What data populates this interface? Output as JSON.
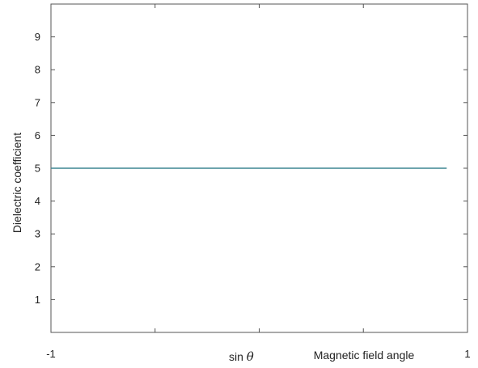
{
  "chart_data": {
    "type": "line",
    "title": "",
    "xlabel": "Magnetic field angle",
    "ylabel": "Dielectric coefficient",
    "x_annotation": {
      "prefix": "sin ",
      "symbol": "θ"
    },
    "xlim": [
      -1,
      1
    ],
    "ylim": [
      0,
      10
    ],
    "x_tick_labels": [
      {
        "value": -1,
        "label": "-1"
      },
      {
        "value": 1,
        "label": "1"
      }
    ],
    "x_minor_ticks": [
      -0.5,
      0,
      0.5
    ],
    "y_ticks": [
      1,
      2,
      3,
      4,
      5,
      6,
      7,
      8,
      9
    ],
    "grid": false,
    "series": [
      {
        "color": "#3d8592",
        "x": [
          -1,
          0.9
        ],
        "y": [
          5,
          5
        ]
      }
    ]
  }
}
